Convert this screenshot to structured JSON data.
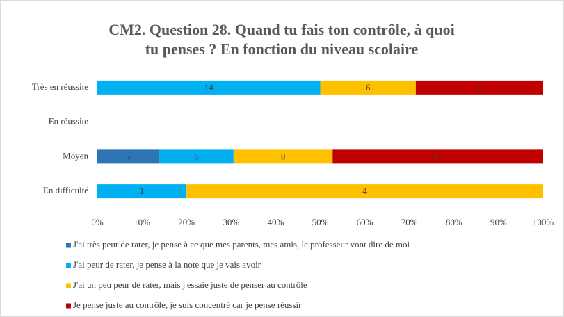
{
  "chart_data": {
    "type": "bar",
    "orientation": "horizontal",
    "stacking": "percent",
    "title": "CM2. Question 28. Quand tu fais ton contrôle, à quoi tu penses ? En fonction du niveau scolaire",
    "categories": [
      "Très en réussite",
      "En réussite",
      "Moyen",
      "En difficulté"
    ],
    "series": [
      {
        "name": "J'ai très peur de rater, je pense à ce que mes parents, mes amis, le professeur vont dire de moi",
        "color": "#2e75b6",
        "values": [
          null,
          null,
          5,
          null
        ]
      },
      {
        "name": "J'ai peur de rater, je pense à la note que je vais avoir",
        "color": "#00b0f0",
        "values": [
          14,
          null,
          6,
          1
        ]
      },
      {
        "name": "J'ai un peu peur de rater, mais j'essaie juste de penser au contrôle",
        "color": "#ffc000",
        "values": [
          6,
          null,
          8,
          4
        ]
      },
      {
        "name": "Je pense juste au contrôle, je suis concentré car je pense réussir",
        "color": "#c00000",
        "values": [
          8,
          null,
          17,
          null
        ]
      }
    ],
    "xlim": [
      0,
      100
    ],
    "xticks": [
      {
        "value": 0,
        "label": "0%"
      },
      {
        "value": 10,
        "label": "10%"
      },
      {
        "value": 20,
        "label": "20%"
      },
      {
        "value": 30,
        "label": "30%"
      },
      {
        "value": 40,
        "label": "40%"
      },
      {
        "value": 50,
        "label": "50%"
      },
      {
        "value": 60,
        "label": "60%"
      },
      {
        "value": 70,
        "label": "70%"
      },
      {
        "value": 80,
        "label": "80%"
      },
      {
        "value": 90,
        "label": "90%"
      },
      {
        "value": 100,
        "label": "100%"
      }
    ],
    "grid": false,
    "legend": "bottom"
  }
}
